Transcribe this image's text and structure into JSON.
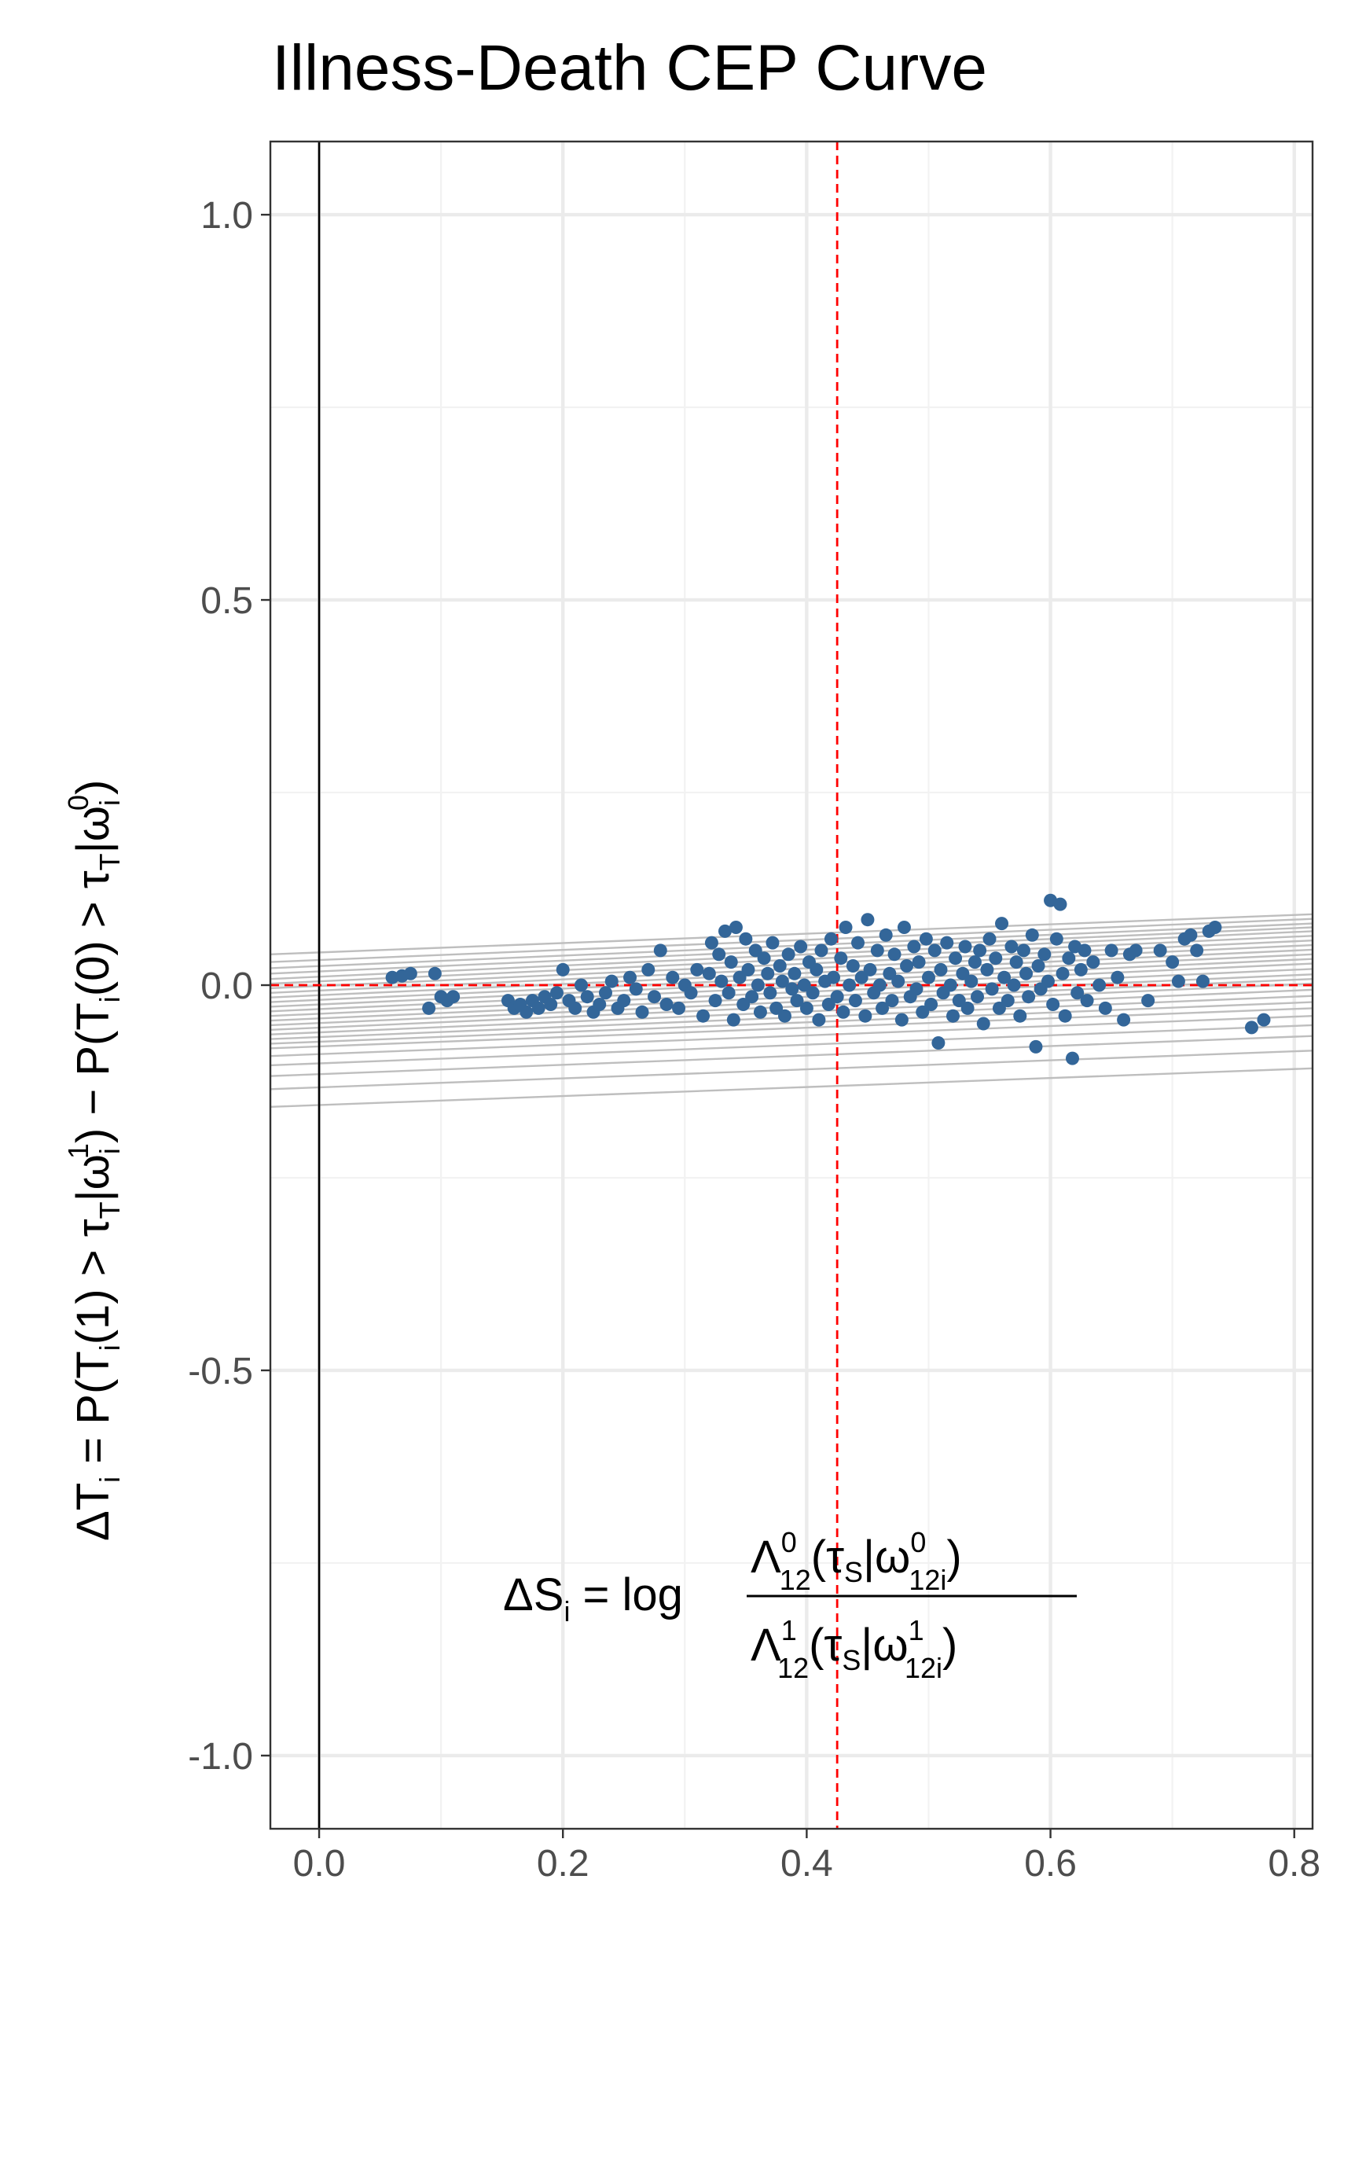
{
  "chart_data": {
    "type": "scatter",
    "title": "Illness-Death CEP Curve",
    "xlim": [
      -0.04,
      0.815
    ],
    "ylim": [
      -1.095,
      1.095
    ],
    "x_ticks": [
      0.0,
      0.2,
      0.4,
      0.6,
      0.8
    ],
    "x_tick_labels": [
      "0.0",
      "0.2",
      "0.4",
      "0.6",
      "0.8"
    ],
    "y_ticks": [
      1.0,
      0.5,
      0.0,
      -0.5,
      -1.0
    ],
    "y_tick_labels": [
      "1.0",
      "0.5",
      "0.0",
      "-0.5",
      "-1.0"
    ],
    "xlabel": {
      "lhs": "ΔS",
      "lhs_sub": "i",
      "eq": " = log",
      "num": {
        "sym": "Λ",
        "sup": "0",
        "sub": "12",
        "tau": "(τ",
        "tau_sub": "S",
        "bar": "|ω",
        "w_sup": "0",
        "w_sub": "12i",
        "close": ")"
      },
      "den": {
        "sym": "Λ",
        "sup": "1",
        "sub": "12",
        "tau": "(τ",
        "tau_sub": "S",
        "bar": "|ω",
        "w_sup": "1",
        "w_sub": "12i",
        "close": ")"
      }
    },
    "ylabel": {
      "t1": "ΔT",
      "t1_sub": "i",
      "t2": " = P(T",
      "t2_sub": "i",
      "t3": "(1) > τ",
      "t3_sub": "T",
      "t4": "|ω",
      "t4_sub": "i",
      "t4_sup": "1",
      "t5": ") − P(T",
      "t5_sub": "i",
      "t6": "(0) > τ",
      "t6_sub": "T",
      "t7": "|ω",
      "t7_sub": "i",
      "t7_sup": "0",
      "t8": ")"
    },
    "reference_lines": {
      "vertical_solid_x": 0.0,
      "vertical_dashed_x": 0.425,
      "horizontal_dashed_y": 0.0,
      "color": "#ff0000"
    },
    "grid": true,
    "colors": {
      "points": "#336699",
      "lines": "#bebebe",
      "reference": "#ff0000",
      "axis_line": "#000000"
    },
    "lines": [
      {
        "x": [
          -0.04,
          0.815
        ],
        "y": [
          0.04,
          0.092
        ]
      },
      {
        "x": [
          -0.04,
          0.815
        ],
        "y": [
          0.03,
          0.086
        ]
      },
      {
        "x": [
          -0.04,
          0.815
        ],
        "y": [
          0.022,
          0.08
        ]
      },
      {
        "x": [
          -0.04,
          0.815
        ],
        "y": [
          0.015,
          0.075
        ]
      },
      {
        "x": [
          -0.04,
          0.815
        ],
        "y": [
          0.008,
          0.07
        ]
      },
      {
        "x": [
          -0.04,
          0.815
        ],
        "y": [
          0.002,
          0.064
        ]
      },
      {
        "x": [
          -0.04,
          0.815
        ],
        "y": [
          -0.004,
          0.058
        ]
      },
      {
        "x": [
          -0.04,
          0.815
        ],
        "y": [
          -0.01,
          0.052
        ]
      },
      {
        "x": [
          -0.04,
          0.815
        ],
        "y": [
          -0.016,
          0.046
        ]
      },
      {
        "x": [
          -0.04,
          0.815
        ],
        "y": [
          -0.022,
          0.04
        ]
      },
      {
        "x": [
          -0.04,
          0.815
        ],
        "y": [
          -0.028,
          0.034
        ]
      },
      {
        "x": [
          -0.04,
          0.815
        ],
        "y": [
          -0.034,
          0.028
        ]
      },
      {
        "x": [
          -0.04,
          0.815
        ],
        "y": [
          -0.04,
          0.021
        ]
      },
      {
        "x": [
          -0.04,
          0.815
        ],
        "y": [
          -0.046,
          0.014
        ]
      },
      {
        "x": [
          -0.04,
          0.815
        ],
        "y": [
          -0.052,
          0.008
        ]
      },
      {
        "x": [
          -0.04,
          0.815
        ],
        "y": [
          -0.058,
          0.002
        ]
      },
      {
        "x": [
          -0.04,
          0.815
        ],
        "y": [
          -0.064,
          -0.006
        ]
      },
      {
        "x": [
          -0.04,
          0.815
        ],
        "y": [
          -0.07,
          -0.014
        ]
      },
      {
        "x": [
          -0.04,
          0.815
        ],
        "y": [
          -0.076,
          -0.022
        ]
      },
      {
        "x": [
          -0.04,
          0.815
        ],
        "y": [
          -0.082,
          -0.03
        ]
      },
      {
        "x": [
          -0.04,
          0.815
        ],
        "y": [
          -0.092,
          -0.04
        ]
      },
      {
        "x": [
          -0.04,
          0.815
        ],
        "y": [
          -0.104,
          -0.052
        ]
      },
      {
        "x": [
          -0.04,
          0.815
        ],
        "y": [
          -0.118,
          -0.066
        ]
      },
      {
        "x": [
          -0.04,
          0.815
        ],
        "y": [
          -0.135,
          -0.085
        ]
      },
      {
        "x": [
          -0.04,
          0.815
        ],
        "y": [
          -0.158,
          -0.108
        ]
      }
    ],
    "points": [
      [
        0.06,
        0.01
      ],
      [
        0.068,
        0.012
      ],
      [
        0.075,
        0.015
      ],
      [
        0.09,
        -0.03
      ],
      [
        0.095,
        0.015
      ],
      [
        0.1,
        -0.015
      ],
      [
        0.105,
        -0.02
      ],
      [
        0.11,
        -0.015
      ],
      [
        0.155,
        -0.02
      ],
      [
        0.16,
        -0.03
      ],
      [
        0.165,
        -0.025
      ],
      [
        0.17,
        -0.035
      ],
      [
        0.175,
        -0.02
      ],
      [
        0.18,
        -0.03
      ],
      [
        0.185,
        -0.015
      ],
      [
        0.19,
        -0.025
      ],
      [
        0.195,
        -0.01
      ],
      [
        0.2,
        0.02
      ],
      [
        0.205,
        -0.02
      ],
      [
        0.21,
        -0.03
      ],
      [
        0.215,
        0.0
      ],
      [
        0.22,
        -0.015
      ],
      [
        0.225,
        -0.035
      ],
      [
        0.23,
        -0.025
      ],
      [
        0.235,
        -0.01
      ],
      [
        0.24,
        0.005
      ],
      [
        0.245,
        -0.03
      ],
      [
        0.25,
        -0.02
      ],
      [
        0.255,
        0.01
      ],
      [
        0.26,
        -0.005
      ],
      [
        0.265,
        -0.035
      ],
      [
        0.27,
        0.02
      ],
      [
        0.275,
        -0.015
      ],
      [
        0.28,
        0.045
      ],
      [
        0.285,
        -0.025
      ],
      [
        0.29,
        0.01
      ],
      [
        0.295,
        -0.03
      ],
      [
        0.3,
        0.0
      ],
      [
        0.305,
        -0.01
      ],
      [
        0.31,
        0.02
      ],
      [
        0.315,
        -0.04
      ],
      [
        0.32,
        0.015
      ],
      [
        0.322,
        0.055
      ],
      [
        0.325,
        -0.02
      ],
      [
        0.328,
        0.04
      ],
      [
        0.33,
        0.005
      ],
      [
        0.333,
        0.07
      ],
      [
        0.336,
        -0.01
      ],
      [
        0.338,
        0.03
      ],
      [
        0.34,
        -0.045
      ],
      [
        0.342,
        0.075
      ],
      [
        0.345,
        0.01
      ],
      [
        0.348,
        -0.025
      ],
      [
        0.35,
        0.06
      ],
      [
        0.352,
        0.02
      ],
      [
        0.355,
        -0.015
      ],
      [
        0.358,
        0.045
      ],
      [
        0.36,
        0.0
      ],
      [
        0.362,
        -0.035
      ],
      [
        0.365,
        0.035
      ],
      [
        0.368,
        0.015
      ],
      [
        0.37,
        -0.01
      ],
      [
        0.372,
        0.055
      ],
      [
        0.375,
        -0.03
      ],
      [
        0.378,
        0.025
      ],
      [
        0.38,
        0.005
      ],
      [
        0.382,
        -0.04
      ],
      [
        0.385,
        0.04
      ],
      [
        0.388,
        -0.005
      ],
      [
        0.39,
        0.015
      ],
      [
        0.392,
        -0.02
      ],
      [
        0.395,
        0.05
      ],
      [
        0.398,
        0.0
      ],
      [
        0.4,
        -0.03
      ],
      [
        0.402,
        0.03
      ],
      [
        0.405,
        -0.01
      ],
      [
        0.408,
        0.02
      ],
      [
        0.41,
        -0.045
      ],
      [
        0.412,
        0.045
      ],
      [
        0.415,
        0.005
      ],
      [
        0.418,
        -0.025
      ],
      [
        0.42,
        0.06
      ],
      [
        0.422,
        0.01
      ],
      [
        0.425,
        -0.015
      ],
      [
        0.428,
        0.035
      ],
      [
        0.43,
        -0.035
      ],
      [
        0.432,
        0.075
      ],
      [
        0.435,
        0.0
      ],
      [
        0.438,
        0.025
      ],
      [
        0.44,
        -0.02
      ],
      [
        0.442,
        0.055
      ],
      [
        0.445,
        0.01
      ],
      [
        0.448,
        -0.04
      ],
      [
        0.45,
        0.085
      ],
      [
        0.452,
        0.02
      ],
      [
        0.455,
        -0.01
      ],
      [
        0.458,
        0.045
      ],
      [
        0.46,
        0.0
      ],
      [
        0.462,
        -0.03
      ],
      [
        0.465,
        0.065
      ],
      [
        0.468,
        0.015
      ],
      [
        0.47,
        -0.02
      ],
      [
        0.472,
        0.04
      ],
      [
        0.475,
        0.005
      ],
      [
        0.478,
        -0.045
      ],
      [
        0.48,
        0.075
      ],
      [
        0.482,
        0.025
      ],
      [
        0.485,
        -0.015
      ],
      [
        0.488,
        0.05
      ],
      [
        0.49,
        -0.005
      ],
      [
        0.492,
        0.03
      ],
      [
        0.495,
        -0.035
      ],
      [
        0.498,
        0.06
      ],
      [
        0.5,
        0.01
      ],
      [
        0.502,
        -0.025
      ],
      [
        0.505,
        0.045
      ],
      [
        0.508,
        -0.075
      ],
      [
        0.51,
        0.02
      ],
      [
        0.512,
        -0.01
      ],
      [
        0.515,
        0.055
      ],
      [
        0.518,
        0.0
      ],
      [
        0.52,
        -0.04
      ],
      [
        0.522,
        0.035
      ],
      [
        0.525,
        -0.02
      ],
      [
        0.528,
        0.015
      ],
      [
        0.53,
        0.05
      ],
      [
        0.532,
        -0.03
      ],
      [
        0.535,
        0.005
      ],
      [
        0.538,
        0.03
      ],
      [
        0.54,
        -0.015
      ],
      [
        0.542,
        0.045
      ],
      [
        0.545,
        -0.05
      ],
      [
        0.548,
        0.02
      ],
      [
        0.55,
        0.06
      ],
      [
        0.552,
        -0.005
      ],
      [
        0.555,
        0.035
      ],
      [
        0.558,
        -0.03
      ],
      [
        0.56,
        0.08
      ],
      [
        0.562,
        0.01
      ],
      [
        0.565,
        -0.02
      ],
      [
        0.568,
        0.05
      ],
      [
        0.57,
        0.0
      ],
      [
        0.572,
        0.03
      ],
      [
        0.575,
        -0.04
      ],
      [
        0.578,
        0.045
      ],
      [
        0.58,
        0.015
      ],
      [
        0.582,
        -0.015
      ],
      [
        0.585,
        0.065
      ],
      [
        0.588,
        -0.08
      ],
      [
        0.59,
        0.025
      ],
      [
        0.592,
        -0.005
      ],
      [
        0.595,
        0.04
      ],
      [
        0.598,
        0.005
      ],
      [
        0.6,
        0.11
      ],
      [
        0.602,
        -0.025
      ],
      [
        0.605,
        0.06
      ],
      [
        0.608,
        0.105
      ],
      [
        0.61,
        0.015
      ],
      [
        0.612,
        -0.04
      ],
      [
        0.615,
        0.035
      ],
      [
        0.618,
        -0.095
      ],
      [
        0.62,
        0.05
      ],
      [
        0.622,
        -0.01
      ],
      [
        0.625,
        0.02
      ],
      [
        0.628,
        0.045
      ],
      [
        0.63,
        -0.02
      ],
      [
        0.635,
        0.03
      ],
      [
        0.64,
        0.0
      ],
      [
        0.645,
        -0.03
      ],
      [
        0.65,
        0.045
      ],
      [
        0.655,
        0.01
      ],
      [
        0.66,
        -0.045
      ],
      [
        0.665,
        0.04
      ],
      [
        0.67,
        0.045
      ],
      [
        0.68,
        -0.02
      ],
      [
        0.69,
        0.045
      ],
      [
        0.7,
        0.03
      ],
      [
        0.705,
        0.005
      ],
      [
        0.71,
        0.06
      ],
      [
        0.715,
        0.065
      ],
      [
        0.72,
        0.045
      ],
      [
        0.725,
        0.005
      ],
      [
        0.73,
        0.07
      ],
      [
        0.735,
        0.075
      ],
      [
        0.765,
        -0.055
      ],
      [
        0.775,
        -0.045
      ]
    ]
  }
}
